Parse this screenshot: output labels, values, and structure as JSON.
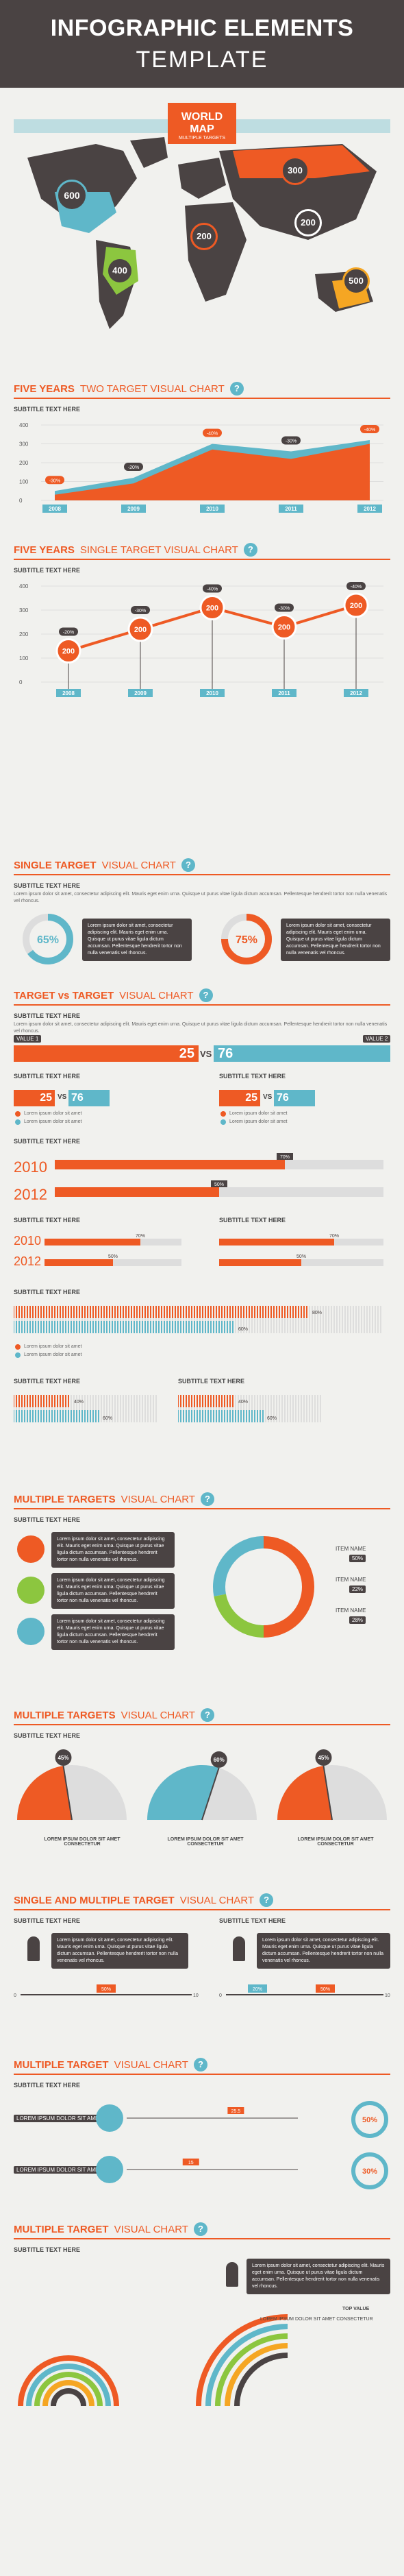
{
  "header": {
    "title1": "INFOGRAPHIC ELEMENTS",
    "title2": "TEMPLATE"
  },
  "world_map": {
    "title": "WORLD MAP",
    "subtitle": "MULTIPLE TARGETS",
    "markers": [
      {
        "value": "600",
        "color": "#5fb7c9"
      },
      {
        "value": "400",
        "color": "#8cc63f"
      },
      {
        "value": "200",
        "color": "#ee5a24"
      },
      {
        "value": "300",
        "color": "#ee5a24"
      },
      {
        "value": "200",
        "color": "#4a4343"
      },
      {
        "value": "500",
        "color": "#f5a623"
      }
    ]
  },
  "sections": {
    "five_two": {
      "acc": "FIVE YEARS",
      "rest": "TWO TARGET VISUAL CHART"
    },
    "five_single": {
      "acc": "FIVE YEARS",
      "rest": "SINGLE TARGET VISUAL CHART"
    },
    "single_target": {
      "acc": "SINGLE TARGET",
      "rest": "VISUAL CHART"
    },
    "target_vs": {
      "acc": "TARGET vs TARGET",
      "rest": "VISUAL CHART"
    },
    "multi1": {
      "acc": "MULTIPLE TARGETS",
      "rest": "VISUAL CHART"
    },
    "multi2": {
      "acc": "MULTIPLE TARGETS",
      "rest": "VISUAL CHART"
    },
    "single_multi": {
      "acc": "SINGLE AND MULTIPLE TARGET",
      "rest": "VISUAL CHART"
    },
    "multi3": {
      "acc": "MULTIPLE TARGET",
      "rest": "VISUAL CHART"
    },
    "multi4": {
      "acc": "MULTIPLE TARGET",
      "rest": "VISUAL CHART"
    }
  },
  "subtitle": "SUBTITLE TEXT HERE",
  "lorem_short": "Lorem ipsum dolor sit amet, consectetur adipiscing elit. Mauris eget enim urna. Quisque ut purus vitae ligula dictum accumsan.",
  "lorem_long": "Lorem ipsum dolor sit amet, consectetur adipiscing elit. Mauris eget enim urna. Quisque ut purus vitae ligula dictum accumsan. Pellentesque hendrerit tortor non nulla venenatis vel rhoncus.",
  "lorem_item": "Lorem ipsum dolor sit amet",
  "value1": "VALUE 1",
  "value2": "VALUE 2",
  "vs": "VS",
  "item_name": "ITEM NAME",
  "lorem_caps": "LOREM IPSUM DOLOR SIT AMET CONSECTETUR",
  "lorem_caps_short": "LOREM IPSUM DOLOR SIT AMET",
  "top_value": "TOP VALUE",
  "chart_data": [
    {
      "type": "area",
      "title": "FIVE YEARS TWO TARGET VISUAL CHART",
      "x": [
        "2008",
        "2009",
        "2010",
        "2011",
        "2012"
      ],
      "ylim": [
        0,
        400
      ],
      "yticks": [
        0,
        100,
        200,
        300,
        400
      ],
      "series": [
        {
          "values": [
            30,
            90,
            270,
            220,
            300
          ],
          "color": "#ee5a24"
        },
        {
          "values": [
            50,
            120,
            300,
            260,
            320
          ],
          "color": "#5fb7c9"
        }
      ],
      "labels": [
        "-30%",
        "-20%",
        "-40%",
        "-30%",
        "-40%"
      ]
    },
    {
      "type": "line",
      "title": "FIVE YEARS SINGLE TARGET VISUAL CHART",
      "x": [
        "2008",
        "2009",
        "2010",
        "2011",
        "2012"
      ],
      "ylim": [
        0,
        400
      ],
      "yticks": [
        0,
        100,
        200,
        300,
        400
      ],
      "series": [
        {
          "values": [
            130,
            220,
            310,
            230,
            320
          ],
          "color": "#ee5a24"
        }
      ],
      "point_labels": [
        "200",
        "200",
        "200",
        "200",
        "200"
      ],
      "labels": [
        "-20%",
        "-30%",
        "-40%",
        "-30%",
        "-40%"
      ]
    },
    {
      "type": "pie",
      "title": "SINGLE TARGET VISUAL CHART",
      "values": [
        65,
        75
      ],
      "labels": [
        "65%",
        "75%"
      ],
      "colors": [
        "#5fb7c9",
        "#ee5a24"
      ]
    },
    {
      "type": "bar",
      "title": "TARGET vs TARGET VISUAL CHART",
      "vs": [
        25,
        76
      ],
      "years": [
        "2010",
        "2012"
      ],
      "year_values": [
        70,
        50
      ],
      "year_labels": [
        "70%",
        "50%"
      ]
    },
    {
      "type": "pie",
      "title": "MULTIPLE TARGETS VISUAL CHART",
      "values": [
        50,
        22,
        28
      ],
      "labels": [
        "50%",
        "22%",
        "28%"
      ],
      "colors": [
        "#ee5a24",
        "#8cc63f",
        "#5fb7c9"
      ]
    },
    {
      "type": "pie",
      "title": "MULTIPLE TARGETS VISUAL CHART",
      "values": [
        45,
        60,
        45
      ],
      "labels": [
        "45%",
        "60%",
        "45%"
      ],
      "colors": [
        "#ee5a24",
        "#5fb7c9",
        "#ee5a24"
      ]
    },
    {
      "type": "bar",
      "title": "SINGLE AND MULTIPLE TARGET VISUAL CHART",
      "values": [
        50,
        20,
        50
      ],
      "labels": [
        "50%",
        "20%",
        "50%"
      ],
      "ylim": [
        0,
        100
      ]
    },
    {
      "type": "bar",
      "title": "MULTIPLE TARGET VISUAL CHART",
      "values": [
        25.5,
        15
      ],
      "labels": [
        "25.5",
        "15"
      ],
      "ring_labels": [
        "50%",
        "30%"
      ]
    }
  ]
}
